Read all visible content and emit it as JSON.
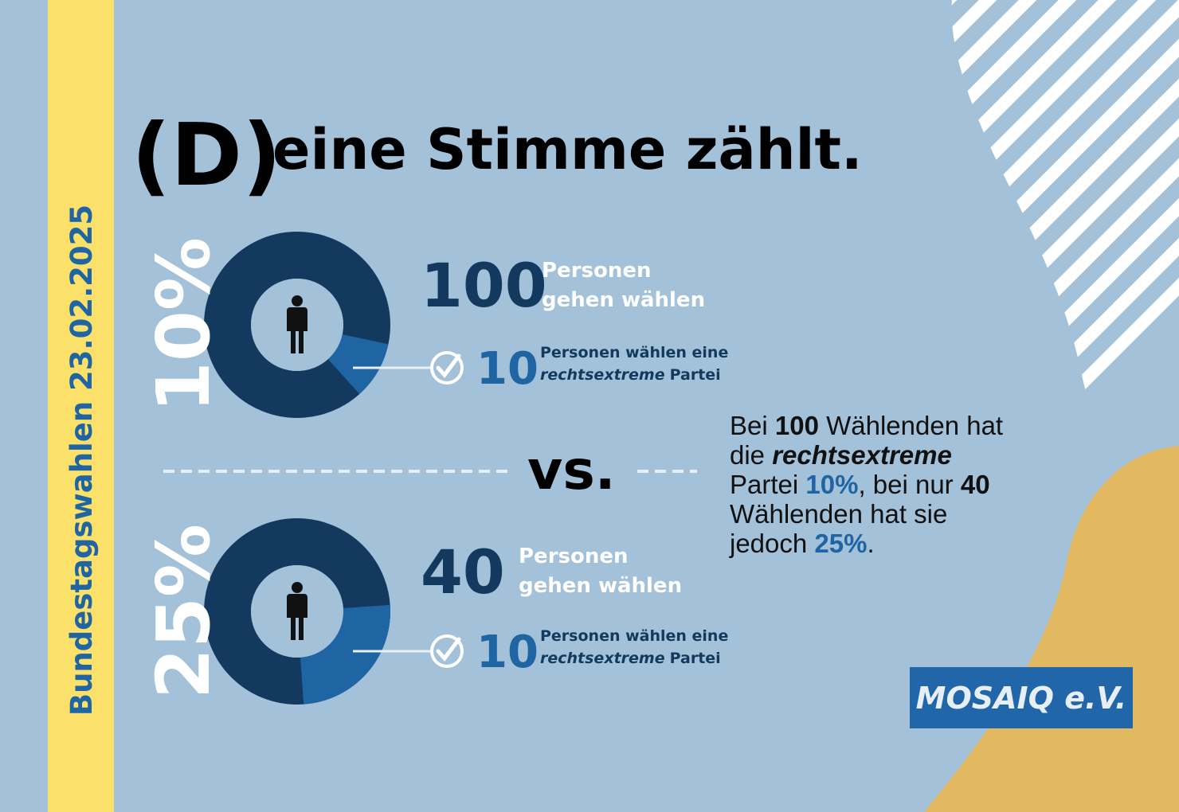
{
  "side_label": "Bundestagswahlen 23.02.2025",
  "title": {
    "prefix": "(D)",
    "text": "eine Stimme zählt."
  },
  "donuts": [
    {
      "percent": {
        "value": 10,
        "label": "10%"
      },
      "voters": 100,
      "voters_line1": "Personen",
      "voters_line2": "gehen wählen",
      "extreme_voters": 10,
      "extreme_line1": "Personen wählen eine",
      "extreme_italic": "rechtsextreme",
      "extreme_rest": "Partei"
    },
    {
      "percent": {
        "value": 25,
        "label": "25%"
      },
      "voters": 40,
      "voters_line1": "Personen",
      "voters_line2": "gehen wählen",
      "extreme_voters": 10,
      "extreme_line1": "Personen wählen eine",
      "extreme_italic": "rechtsextreme",
      "extreme_rest": "Partei"
    }
  ],
  "vs": "vs.",
  "summary": [
    "Bei ",
    "100",
    " Wählenden hat",
    "die ",
    "rechtsextreme",
    "Partei ",
    "10%",
    ", bei nur ",
    "40",
    "Wählenden hat sie",
    "jedoch ",
    "25%",
    "."
  ],
  "logo": "MOSAIQ e.V."
}
